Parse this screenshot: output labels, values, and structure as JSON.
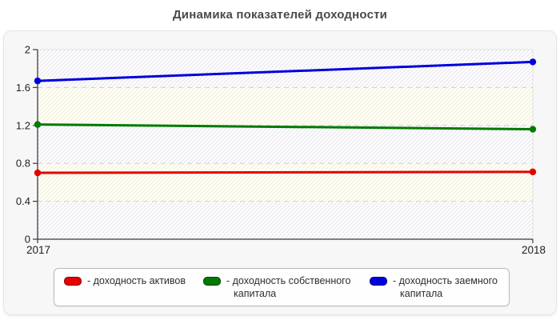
{
  "page": {
    "title": "Динамика показателей доходности"
  },
  "chart_data": {
    "type": "line",
    "title": "Динамика показателей доходности",
    "x": [
      "2017",
      "2018"
    ],
    "xlabel": "",
    "ylabel": "",
    "ylim": [
      0,
      2
    ],
    "yticks": [
      0,
      0.4,
      0.8,
      1.2,
      1.6,
      2
    ],
    "grid": "horizontal-dashed",
    "legend_position": "bottom",
    "series": [
      {
        "name": "доходность активов",
        "color": "#e60000",
        "values": [
          0.7,
          0.71
        ]
      },
      {
        "name": "доходность собственного капитала",
        "color": "#007a00",
        "values": [
          1.21,
          1.16
        ]
      },
      {
        "name": "доходность заемного капитала",
        "color": "#0000dd",
        "values": [
          1.67,
          1.87
        ]
      }
    ]
  },
  "legend": {
    "items": [
      {
        "label": "- доходность активов"
      },
      {
        "label": "- доходность собственного капитала"
      },
      {
        "label": "- доходность заемного капитала"
      }
    ]
  },
  "colors": {
    "series_red": "#e60000",
    "series_green": "#007a00",
    "series_blue": "#0000dd",
    "panel_background": "#f7f7f7",
    "gridline": "#cfcfcf",
    "axis": "#3a3a3a"
  }
}
